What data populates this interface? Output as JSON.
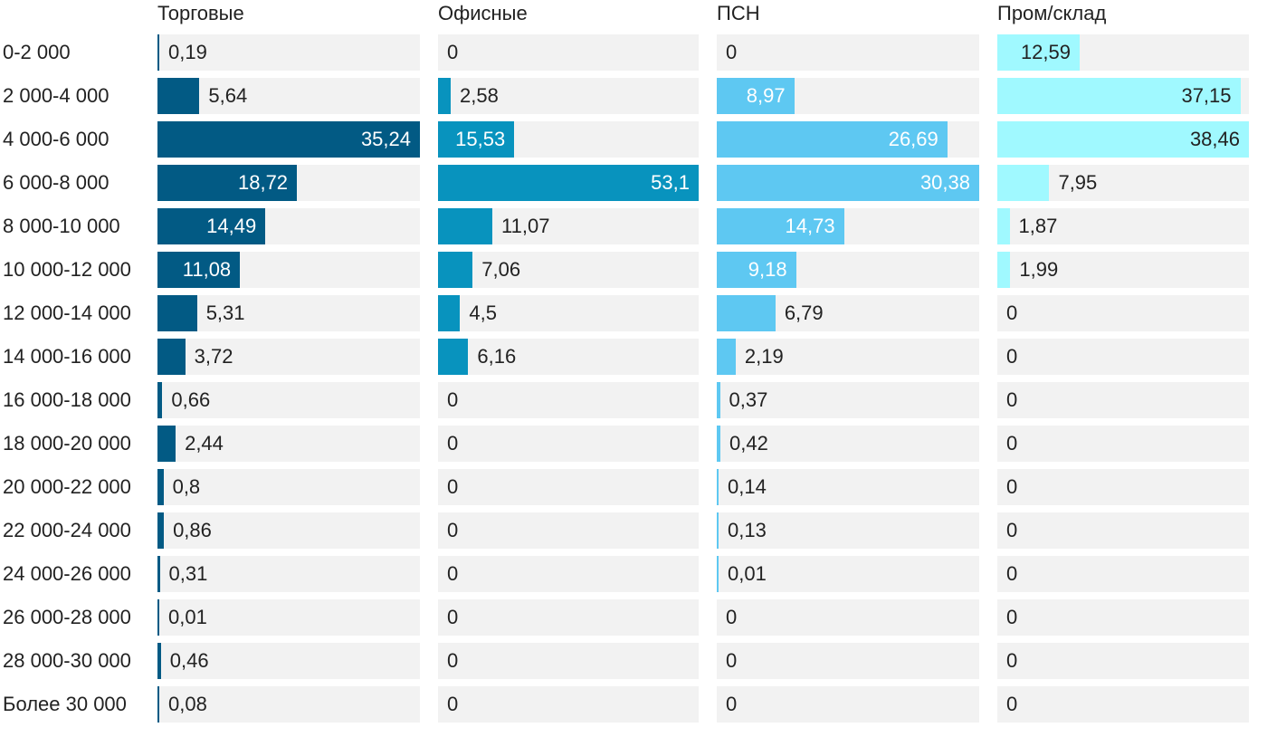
{
  "chart_data": {
    "type": "bar",
    "orientation": "horizontal",
    "layout": "small-multiples",
    "categories": [
      "0-2 000",
      "2 000-4 000",
      "4 000-6 000",
      "6 000-8 000",
      "8 000-10 000",
      "10 000-12 000",
      "12 000-14 000",
      "14 000-16 000",
      "16 000-18 000",
      "18 000-20 000",
      "20 000-22 000",
      "22 000-24 000",
      "24 000-26 000",
      "26 000-28 000",
      "28 000-30 000",
      "Более 30 000"
    ],
    "series": [
      {
        "name": "Торговые",
        "color": "#025a84",
        "max": 35.24,
        "values": [
          0.19,
          5.64,
          35.24,
          18.72,
          14.49,
          11.08,
          5.31,
          3.72,
          0.66,
          2.44,
          0.8,
          0.86,
          0.31,
          0.01,
          0.46,
          0.08
        ],
        "labels": [
          "0,19",
          "5,64",
          "35,24",
          "18,72",
          "14,49",
          "11,08",
          "5,31",
          "3,72",
          "0,66",
          "2,44",
          "0,8",
          "0,86",
          "0,31",
          "0,01",
          "0,46",
          "0,08"
        ]
      },
      {
        "name": "Офисные",
        "color": "#0893be",
        "max": 53.1,
        "values": [
          0,
          2.58,
          15.53,
          53.1,
          11.07,
          7.06,
          4.5,
          6.16,
          0,
          0,
          0,
          0,
          0,
          0,
          0,
          0
        ],
        "labels": [
          "0",
          "2,58",
          "15,53",
          "53,1",
          "11,07",
          "7,06",
          "4,5",
          "6,16",
          "0",
          "0",
          "0",
          "0",
          "0",
          "0",
          "0",
          "0"
        ]
      },
      {
        "name": "ПСН",
        "color": "#5ec8f2",
        "max": 30.38,
        "values": [
          0,
          8.97,
          26.69,
          30.38,
          14.73,
          9.18,
          6.79,
          2.19,
          0.37,
          0.42,
          0.14,
          0.13,
          0.01,
          0,
          0,
          0
        ],
        "labels": [
          "0",
          "8,97",
          "26,69",
          "30,38",
          "14,73",
          "9,18",
          "6,79",
          "2,19",
          "0,37",
          "0,42",
          "0,14",
          "0,13",
          "0,01",
          "0",
          "0",
          "0"
        ]
      },
      {
        "name": "Пром/склад",
        "color": "#a0f9ff",
        "max": 38.46,
        "values": [
          12.59,
          37.15,
          38.46,
          7.95,
          1.87,
          1.99,
          0,
          0,
          0,
          0,
          0,
          0,
          0,
          0,
          0,
          0
        ],
        "labels": [
          "12,59",
          "37,15",
          "38,46",
          "7,95",
          "1,87",
          "1,99",
          "0",
          "0",
          "0",
          "0",
          "0",
          "0",
          "0",
          "0",
          "0",
          "0"
        ]
      }
    ]
  }
}
